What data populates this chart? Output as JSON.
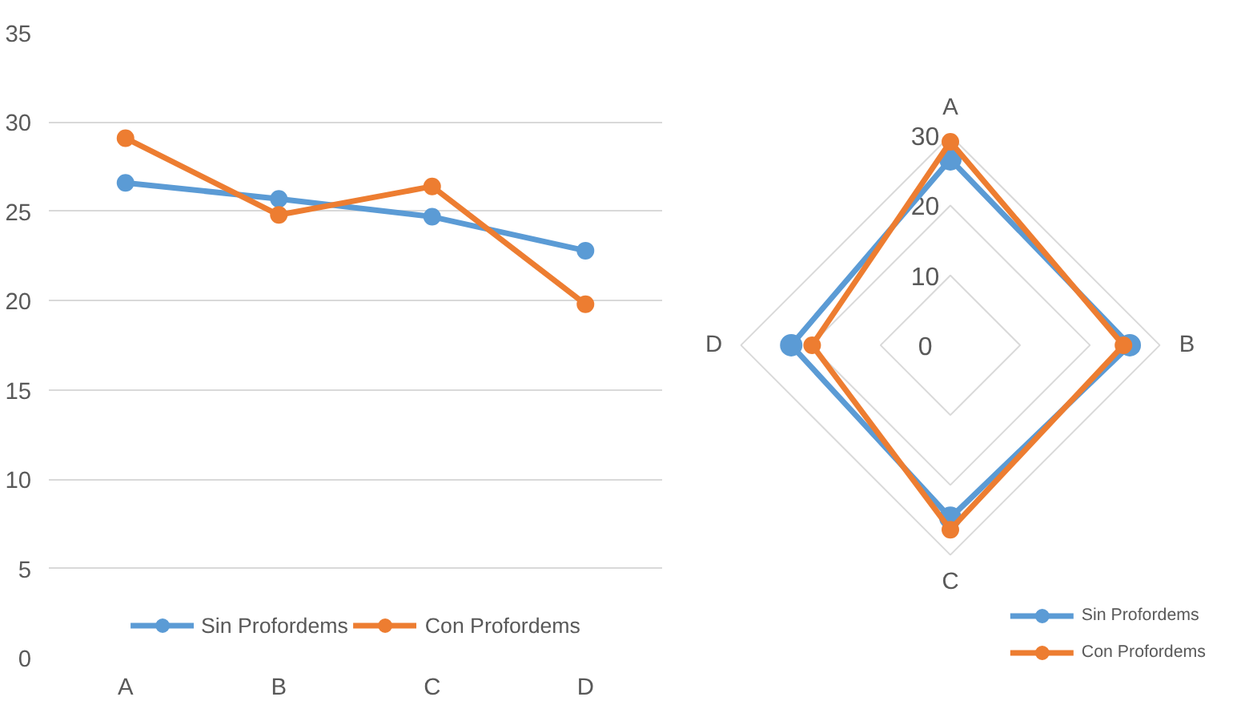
{
  "chart_data": [
    {
      "type": "line",
      "categories": [
        "A",
        "B",
        "C",
        "D"
      ],
      "series": [
        {
          "name": "Sin Profordems",
          "color": "#5b9bd5",
          "values": [
            26.6,
            25.7,
            24.7,
            22.8
          ]
        },
        {
          "name": "Con Profordems",
          "color": "#ed7d31",
          "values": [
            29.1,
            24.8,
            26.4,
            19.8
          ]
        }
      ],
      "ylim": [
        0,
        35
      ],
      "yticks": [
        0,
        5,
        10,
        15,
        20,
        25,
        30,
        35
      ],
      "grid": "y",
      "legend": "bottom",
      "marker": "circle",
      "line_style": "solid"
    },
    {
      "type": "radar",
      "categories": [
        "A",
        "B",
        "C",
        "D"
      ],
      "series": [
        {
          "name": "Sin Profordems",
          "color": "#5b9bd5",
          "values": [
            26.6,
            25.7,
            24.7,
            22.8
          ]
        },
        {
          "name": "Con Profordems",
          "color": "#ed7d31",
          "values": [
            29.1,
            24.8,
            26.4,
            19.8
          ]
        }
      ],
      "ylim": [
        0,
        30
      ],
      "yticks": [
        0,
        10,
        20,
        30
      ],
      "grid": true,
      "legend": "bottom right",
      "marker": "circle",
      "line_style": "solid"
    }
  ]
}
